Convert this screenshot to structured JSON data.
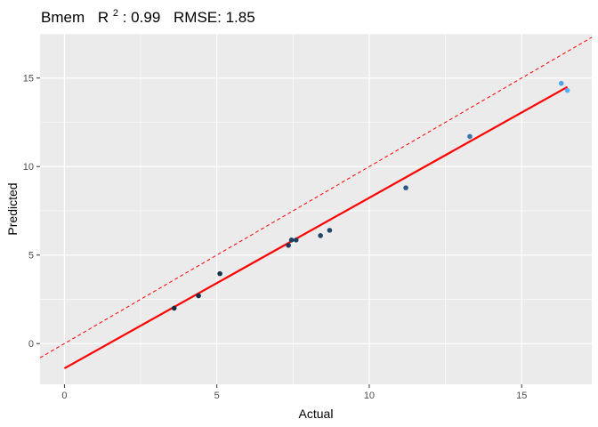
{
  "chart_data": {
    "type": "scatter",
    "title_prefix": "Bmem",
    "title_r2_symbol": "R",
    "title_r2_exponent": "2",
    "title_r2_value": ": 0.99",
    "title_rmse": "RMSE: 1.85",
    "xlabel": "Actual",
    "ylabel": "Predicted",
    "xlim": [
      -0.8,
      17.3
    ],
    "ylim": [
      -2.3,
      17.5
    ],
    "x_ticks": [
      0,
      5,
      10,
      15
    ],
    "y_ticks": [
      0,
      5,
      10,
      15
    ],
    "x_tick_labels": [
      "0",
      "5",
      "10",
      "15"
    ],
    "y_tick_labels": [
      "0",
      "5",
      "10",
      "15"
    ],
    "grid": true,
    "legend": "none",
    "points": [
      {
        "x": 3.6,
        "y": 2.0,
        "color": "#132b43"
      },
      {
        "x": 4.4,
        "y": 2.7,
        "color": "#16304a"
      },
      {
        "x": 5.1,
        "y": 3.95,
        "color": "#19344f"
      },
      {
        "x": 7.35,
        "y": 5.55,
        "color": "#1e3f5e"
      },
      {
        "x": 7.45,
        "y": 5.85,
        "color": "#1f4160"
      },
      {
        "x": 7.6,
        "y": 5.85,
        "color": "#1f4161"
      },
      {
        "x": 8.4,
        "y": 6.1,
        "color": "#224567"
      },
      {
        "x": 8.7,
        "y": 6.4,
        "color": "#23476a"
      },
      {
        "x": 11.2,
        "y": 8.8,
        "color": "#2d5985"
      },
      {
        "x": 13.3,
        "y": 11.7,
        "color": "#3b73ab"
      },
      {
        "x": 16.3,
        "y": 14.7,
        "color": "#53a3e5"
      },
      {
        "x": 16.5,
        "y": 14.3,
        "color": "#56b1f7"
      }
    ],
    "fit_line": {
      "x": [
        0,
        16.5
      ],
      "y": [
        -1.4,
        14.5
      ],
      "color": "#ff0000"
    },
    "identity_line": {
      "slope": 1,
      "intercept": 0,
      "color": "#ff0000",
      "style": "dashed"
    },
    "panel_background": "#ebebeb",
    "grid_color": "#ffffff"
  }
}
